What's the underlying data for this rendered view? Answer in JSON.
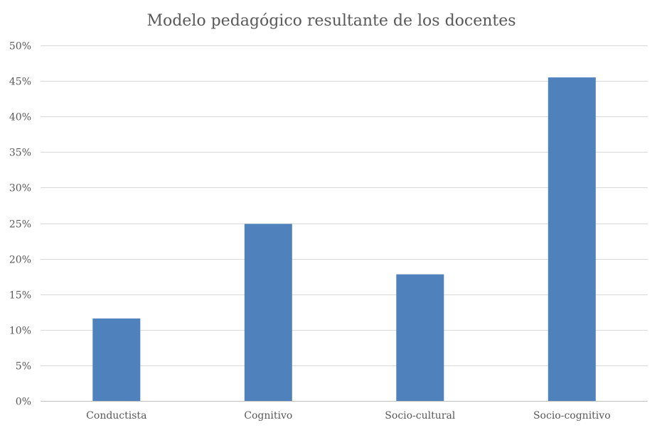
{
  "chart_data": {
    "type": "bar",
    "title": "Modelo pedagógico resultante de los docentes",
    "xlabel": "",
    "ylabel": "",
    "categories": [
      "Conductista",
      "Cognitivo",
      "Socio-cultural",
      "Socio-cognitivo"
    ],
    "values": [
      0.116,
      0.249,
      0.178,
      0.455
    ],
    "ylim": [
      0,
      0.5
    ],
    "yticks": [
      {
        "value": 0.0,
        "label": "0%"
      },
      {
        "value": 0.05,
        "label": "5%"
      },
      {
        "value": 0.1,
        "label": "10%"
      },
      {
        "value": 0.15,
        "label": "15%"
      },
      {
        "value": 0.2,
        "label": "20%"
      },
      {
        "value": 0.25,
        "label": "25%"
      },
      {
        "value": 0.3,
        "label": "30%"
      },
      {
        "value": 0.35,
        "label": "35%"
      },
      {
        "value": 0.4,
        "label": "40%"
      },
      {
        "value": 0.45,
        "label": "45%"
      },
      {
        "value": 0.5,
        "label": "50%"
      }
    ],
    "grid": true,
    "legend": "none",
    "colors": {
      "bar": "#4f81bd"
    }
  }
}
